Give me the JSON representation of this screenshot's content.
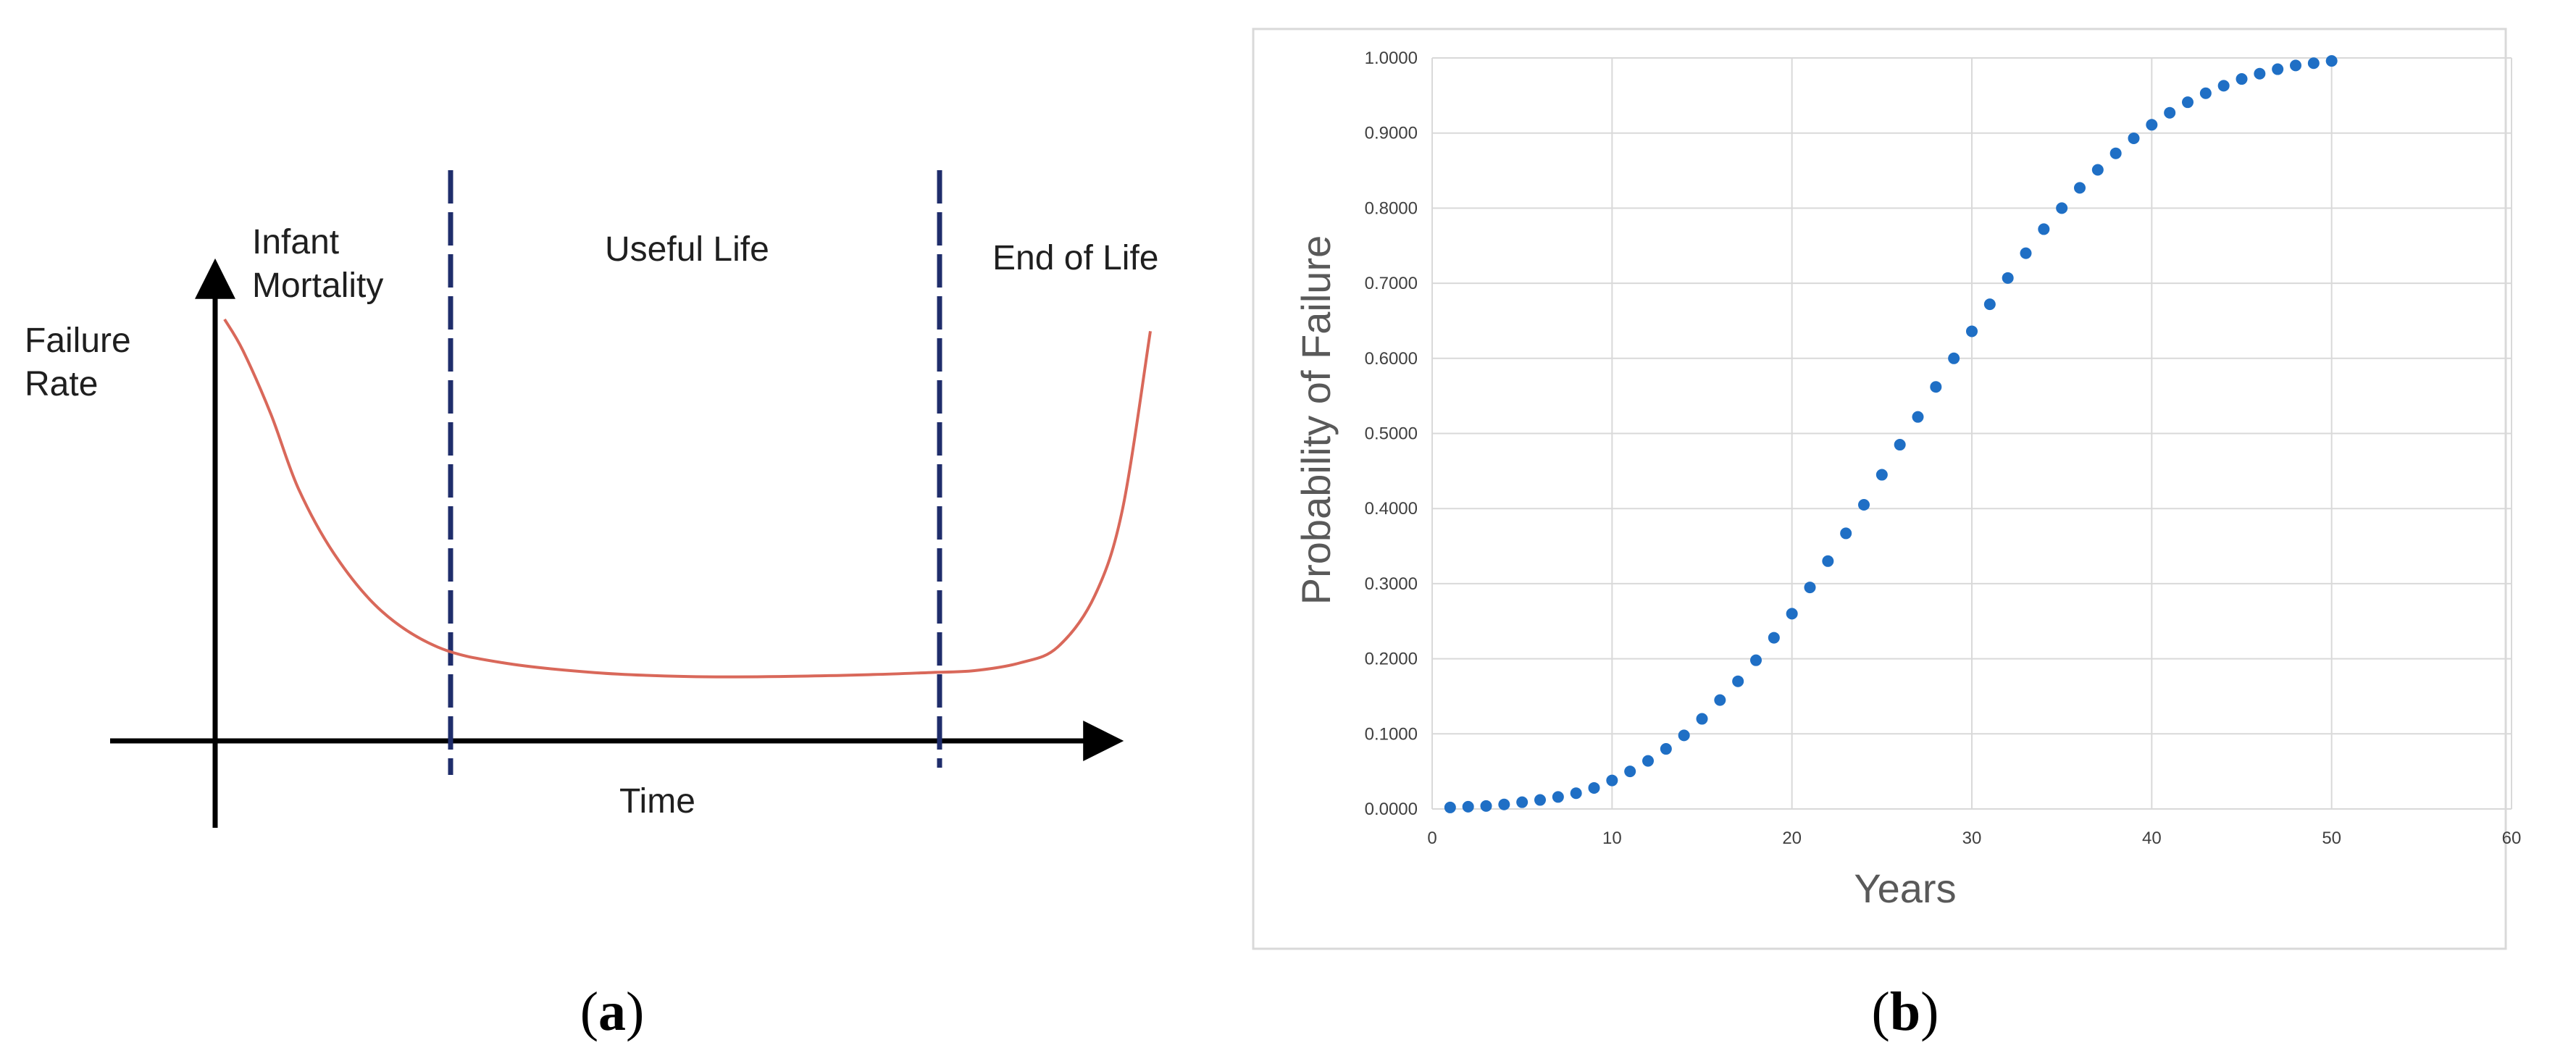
{
  "panel_a": {
    "caption": "a",
    "title_lines": [
      "Failure",
      "Rate"
    ],
    "region_labels": {
      "infant_mortality": [
        "Infant",
        "Mortality"
      ],
      "useful_life": "Useful Life",
      "end_of_life": "End of Life"
    },
    "x_axis_label": "Time",
    "curve_color": "#d9685a",
    "divider_color": "#1f2d6b"
  },
  "panel_b": {
    "caption": "b",
    "marker_color": "#1f6fc5"
  },
  "chart_data": [
    {
      "type": "line",
      "title": "",
      "xlabel": "Time",
      "ylabel": "Failure Rate",
      "grid": false,
      "legend": "none",
      "regions": [
        "Infant Mortality",
        "Useful Life",
        "End of Life"
      ],
      "x_normalized": [
        0.0,
        0.02,
        0.05,
        0.08,
        0.12,
        0.17,
        0.23,
        0.3,
        0.4,
        0.5,
        0.6,
        0.7,
        0.76,
        0.81,
        0.86,
        0.9,
        0.94,
        0.97,
        1.0
      ],
      "values_normalized": [
        0.98,
        0.9,
        0.74,
        0.55,
        0.38,
        0.24,
        0.15,
        0.11,
        0.085,
        0.075,
        0.075,
        0.08,
        0.085,
        0.09,
        0.11,
        0.15,
        0.28,
        0.5,
        0.95
      ]
    },
    {
      "type": "scatter",
      "title": "",
      "xlabel": "Years",
      "ylabel": "Probability of Failure",
      "xlim": [
        0,
        60
      ],
      "ylim": [
        0,
        1
      ],
      "x_ticks": [
        "0",
        "10",
        "20",
        "30",
        "40",
        "50",
        "60"
      ],
      "y_ticks": [
        "0.0000",
        "0.1000",
        "0.2000",
        "0.3000",
        "0.4000",
        "0.5000",
        "0.6000",
        "0.7000",
        "0.8000",
        "0.9000",
        "1.0000"
      ],
      "grid": true,
      "legend": "none",
      "series": [
        {
          "x": [
            1,
            2,
            3,
            4,
            5,
            6,
            7,
            8,
            9,
            10,
            11,
            12,
            13,
            14,
            15,
            16,
            17,
            18,
            19,
            20,
            21,
            22,
            23,
            24,
            25,
            26,
            27,
            28,
            29,
            30,
            31,
            32,
            33,
            34,
            35,
            36,
            37,
            38,
            39,
            40,
            41,
            42,
            43,
            44,
            45,
            46,
            47,
            48,
            49,
            50
          ],
          "values": [
            0.002,
            0.003,
            0.004,
            0.006,
            0.009,
            0.012,
            0.016,
            0.021,
            0.028,
            0.038,
            0.05,
            0.064,
            0.08,
            0.098,
            0.12,
            0.145,
            0.17,
            0.198,
            0.228,
            0.26,
            0.295,
            0.33,
            0.367,
            0.405,
            0.445,
            0.485,
            0.522,
            0.562,
            0.6,
            0.636,
            0.672,
            0.707,
            0.74,
            0.772,
            0.8,
            0.827,
            0.851,
            0.873,
            0.893,
            0.911,
            0.927,
            0.941,
            0.953,
            0.963,
            0.972,
            0.979,
            0.985,
            0.99,
            0.993,
            0.996
          ]
        }
      ]
    }
  ]
}
